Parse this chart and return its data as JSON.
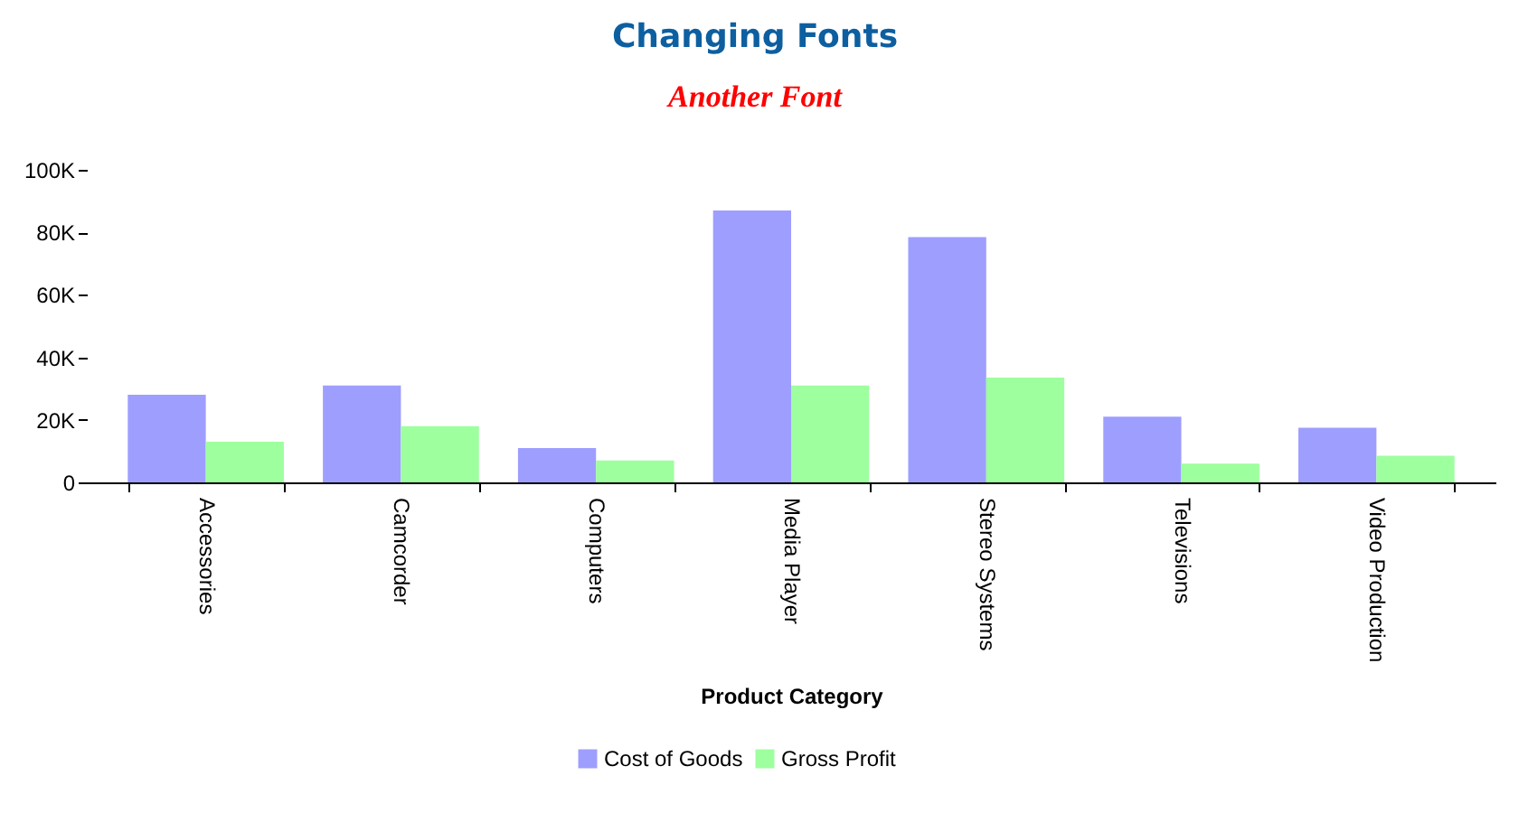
{
  "chart_data": {
    "type": "bar",
    "title": "Changing Fonts",
    "subtitle": "Another Font",
    "xlabel": "Product Category",
    "categories": [
      "Accessories",
      "Camcorder",
      "Computers",
      "Media Player",
      "Stereo Systems",
      "Televisions",
      "Video Production"
    ],
    "series": [
      {
        "name": "Cost of Goods",
        "color": "#9e9eff",
        "values": [
          28000,
          31000,
          11000,
          87000,
          78500,
          21000,
          17500
        ]
      },
      {
        "name": "Gross Profit",
        "color": "#9eff9e",
        "values": [
          13000,
          18000,
          7000,
          31000,
          33500,
          6000,
          8500
        ]
      }
    ],
    "ylim": [
      0,
      100000
    ],
    "yticks": [
      0,
      {
        "value": 20000,
        "label": "20K"
      },
      {
        "value": 40000,
        "label": "40K"
      },
      {
        "value": 60000,
        "label": "60K"
      },
      {
        "value": 80000,
        "label": "80K"
      },
      {
        "value": 100000,
        "label": "100K"
      }
    ],
    "grid": false,
    "legend": "bottom"
  }
}
